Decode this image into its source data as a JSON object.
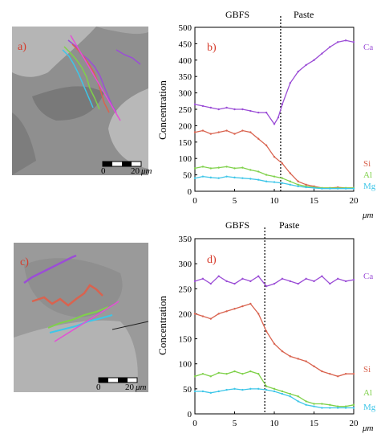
{
  "colors": {
    "Ca": "#9b4dd6",
    "Si": "#d9634f",
    "Al": "#7fd14a",
    "Mg": "#3ec6e8",
    "panel_label": "#d63a2a",
    "micrograph_bg": "#9a9a9a",
    "paste_light": "#b8b8b8"
  },
  "micrographs": [
    {
      "label": "a)",
      "scale_left": "0",
      "scale_right": "20",
      "scale_unit": "μm"
    },
    {
      "label": "c)",
      "scale_left": "0",
      "scale_right": "20",
      "scale_unit": "μm"
    }
  ],
  "chart_data": [
    {
      "type": "line",
      "panel_label": "b)",
      "top_labels": {
        "left": "GBFS",
        "right": "Paste"
      },
      "ylabel": "Concentration",
      "xlabel": "μm",
      "xlim": [
        0,
        20
      ],
      "ylim": [
        0,
        500
      ],
      "xticks": [
        0,
        5,
        10,
        15,
        20
      ],
      "yticks": [
        0,
        50,
        100,
        150,
        200,
        250,
        300,
        350,
        400,
        450,
        500
      ],
      "boundary_x": 10.8,
      "grid": false,
      "legend": "right-of-lines",
      "series": [
        {
          "name": "Ca",
          "x": [
            0,
            1,
            2,
            3,
            4,
            5,
            6,
            7,
            8,
            9,
            10,
            10.5,
            11,
            12,
            13,
            14,
            15,
            16,
            17,
            18,
            19,
            20
          ],
          "values": [
            265,
            260,
            255,
            250,
            255,
            250,
            250,
            245,
            240,
            240,
            205,
            225,
            265,
            330,
            365,
            385,
            400,
            420,
            440,
            455,
            460,
            455
          ]
        },
        {
          "name": "Si",
          "x": [
            0,
            1,
            2,
            3,
            4,
            5,
            6,
            7,
            8,
            9,
            10,
            11,
            12,
            13,
            14,
            15,
            16,
            17,
            18,
            19,
            20
          ],
          "values": [
            180,
            185,
            175,
            180,
            185,
            175,
            185,
            180,
            160,
            140,
            105,
            85,
            55,
            30,
            20,
            15,
            10,
            10,
            12,
            10,
            10
          ]
        },
        {
          "name": "Al",
          "x": [
            0,
            1,
            2,
            3,
            4,
            5,
            6,
            7,
            8,
            9,
            10,
            11,
            12,
            13,
            14,
            15,
            16,
            17,
            18,
            19,
            20
          ],
          "values": [
            70,
            75,
            70,
            72,
            75,
            70,
            72,
            65,
            60,
            50,
            45,
            40,
            30,
            20,
            15,
            12,
            10,
            10,
            10,
            10,
            10
          ]
        },
        {
          "name": "Mg",
          "x": [
            0,
            1,
            2,
            3,
            4,
            5,
            6,
            7,
            8,
            9,
            10,
            11,
            12,
            13,
            14,
            15,
            16,
            17,
            18,
            19,
            20
          ],
          "values": [
            40,
            45,
            42,
            40,
            45,
            42,
            40,
            38,
            35,
            30,
            28,
            25,
            20,
            15,
            12,
            10,
            8,
            8,
            8,
            8,
            8
          ]
        }
      ]
    },
    {
      "type": "line",
      "panel_label": "d)",
      "top_labels": {
        "left": "GBFS",
        "right": "Paste"
      },
      "ylabel": "Concentration",
      "xlabel": "μm",
      "xlim": [
        0,
        20
      ],
      "ylim": [
        0,
        350
      ],
      "xticks": [
        0,
        5,
        10,
        15,
        20
      ],
      "yticks": [
        0,
        50,
        100,
        150,
        200,
        250,
        300,
        350
      ],
      "boundary_x": 8.8,
      "grid": false,
      "legend": "right-of-lines",
      "series": [
        {
          "name": "Ca",
          "x": [
            0,
            1,
            2,
            3,
            4,
            5,
            6,
            7,
            8,
            9,
            10,
            11,
            12,
            13,
            14,
            15,
            16,
            17,
            18,
            19,
            20
          ],
          "values": [
            265,
            270,
            260,
            275,
            265,
            260,
            270,
            265,
            275,
            255,
            260,
            270,
            265,
            260,
            270,
            265,
            275,
            260,
            270,
            265,
            268
          ]
        },
        {
          "name": "Si",
          "x": [
            0,
            1,
            2,
            3,
            4,
            5,
            6,
            7,
            8,
            9,
            10,
            11,
            12,
            13,
            14,
            15,
            16,
            17,
            18,
            19,
            20
          ],
          "values": [
            200,
            195,
            190,
            200,
            205,
            210,
            215,
            220,
            200,
            165,
            140,
            125,
            115,
            110,
            105,
            95,
            85,
            80,
            75,
            80,
            80
          ]
        },
        {
          "name": "Al",
          "x": [
            0,
            1,
            2,
            3,
            4,
            5,
            6,
            7,
            8,
            9,
            10,
            11,
            12,
            13,
            14,
            15,
            16,
            17,
            18,
            19,
            20
          ],
          "values": [
            75,
            80,
            75,
            82,
            80,
            85,
            80,
            85,
            80,
            55,
            50,
            45,
            40,
            35,
            25,
            20,
            20,
            18,
            15,
            15,
            18
          ]
        },
        {
          "name": "Mg",
          "x": [
            0,
            1,
            2,
            3,
            4,
            5,
            6,
            7,
            8,
            9,
            10,
            11,
            12,
            13,
            14,
            15,
            16,
            17,
            18,
            19,
            20
          ],
          "values": [
            45,
            45,
            42,
            45,
            48,
            50,
            48,
            50,
            50,
            48,
            45,
            40,
            35,
            25,
            18,
            15,
            12,
            12,
            12,
            12,
            12
          ]
        }
      ]
    }
  ]
}
